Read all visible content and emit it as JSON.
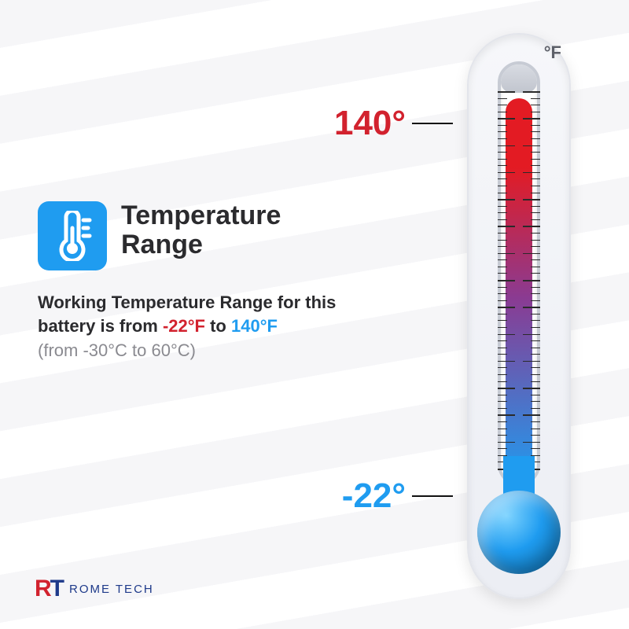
{
  "colors": {
    "icon_bg": "#1f9cf0",
    "icon_fg": "#ffffff",
    "title": "#2b2b2e",
    "body": "#2b2b2e",
    "muted": "#8a8a90",
    "red": "#d2222e",
    "blue": "#1f9cf0",
    "bulb": "#1f9cf0",
    "logo_r": "#d2222e",
    "logo_t": "#1e3a8a",
    "logo_text": "#1e3a8a",
    "unit": "#5c5f68",
    "liquid_top": "#e31b23",
    "liquid_mid": "#8a3b92",
    "liquid_bot": "#1f9cf0",
    "thermo_border": "#c7cbd4"
  },
  "thermo": {
    "unit_label": "°F",
    "high": {
      "label": "140°",
      "value_f": 140,
      "pos_pct": 10
    },
    "low": {
      "label": "-22°",
      "value_f": -22,
      "pos_pct": 88
    },
    "liquid_top_pct": 8,
    "ticks": {
      "count": 57,
      "major_every": 4
    }
  },
  "left": {
    "title": "Temperature Range",
    "desc_pre": "Working Temperature Range for this battery is from ",
    "low_f": "-22°F",
    "mid": " to ",
    "high_f": "140°F",
    "celsius": "(from -30°C to 60°C)"
  },
  "logo": {
    "r": "R",
    "t": "T",
    "text": "ROME TECH"
  }
}
